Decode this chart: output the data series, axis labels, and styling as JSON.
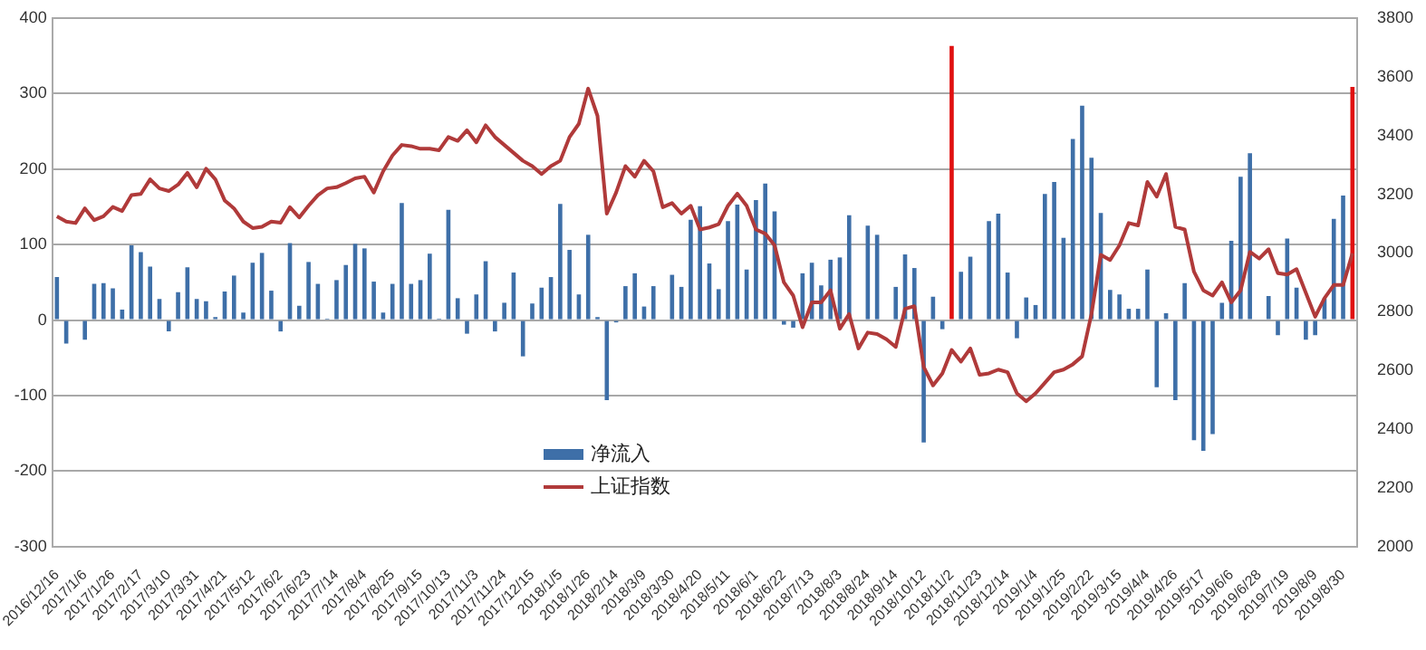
{
  "chart_data": {
    "type": "bar",
    "categories": [
      "2016/12/16",
      null,
      null,
      "2017/1/6",
      null,
      null,
      "2017/1/26",
      null,
      null,
      "2017/2/17",
      null,
      null,
      "2017/3/10",
      null,
      null,
      "2017/3/31",
      null,
      null,
      "2017/4/21",
      null,
      null,
      "2017/5/12",
      null,
      null,
      "2017/6/2",
      null,
      null,
      "2017/6/23",
      null,
      null,
      "2017/7/14",
      null,
      null,
      "2017/8/4",
      null,
      null,
      "2017/8/25",
      null,
      null,
      "2017/9/15",
      null,
      null,
      "2017/10/13",
      null,
      null,
      "2017/11/3",
      null,
      null,
      "2017/11/24",
      null,
      null,
      "2017/12/15",
      null,
      null,
      "2018/1/5",
      null,
      null,
      "2018/1/26",
      null,
      null,
      "2018/2/14",
      null,
      null,
      "2018/3/9",
      null,
      null,
      "2018/3/30",
      null,
      null,
      "2018/4/20",
      null,
      null,
      "2018/5/11",
      null,
      null,
      "2018/6/1",
      null,
      null,
      "2018/6/22",
      null,
      null,
      "2018/7/13",
      null,
      null,
      "2018/8/3",
      null,
      null,
      "2018/8/24",
      null,
      null,
      "2018/9/14",
      null,
      null,
      "2018/10/12",
      null,
      null,
      "2018/11/2",
      null,
      null,
      "2018/11/23",
      null,
      null,
      "2018/12/14",
      null,
      null,
      "2019/1/4",
      null,
      null,
      "2019/1/25",
      null,
      null,
      "2019/2/22",
      null,
      null,
      "2019/3/15",
      null,
      null,
      "2019/4/4",
      null,
      null,
      "2019/4/26",
      null,
      null,
      "2019/5/17",
      null,
      null,
      "2019/6/6",
      null,
      null,
      "2019/6/28",
      null,
      null,
      "2019/7/19",
      null,
      null,
      "2019/8/9",
      null,
      null,
      "2019/8/30",
      null
    ],
    "series": [
      {
        "name": "净流入",
        "color": "#3e6fa8",
        "colors": [
          "#3e6fa8",
          "#3e6fa8",
          "#3e6fa8",
          "#3e6fa8",
          "#3e6fa8",
          "#3e6fa8",
          "#3e6fa8",
          "#3e6fa8",
          "#3e6fa8",
          "#3e6fa8",
          "#3e6fa8",
          "#3e6fa8",
          "#3e6fa8",
          "#3e6fa8",
          "#3e6fa8",
          "#3e6fa8",
          "#3e6fa8",
          "#3e6fa8",
          "#3e6fa8",
          "#3e6fa8",
          "#3e6fa8",
          "#3e6fa8",
          "#3e6fa8",
          "#3e6fa8",
          "#3e6fa8",
          "#3e6fa8",
          "#3e6fa8",
          "#3e6fa8",
          "#3e6fa8",
          "#3e6fa8",
          "#3e6fa8",
          "#3e6fa8",
          "#3e6fa8",
          "#3e6fa8",
          "#3e6fa8",
          "#3e6fa8",
          "#3e6fa8",
          "#3e6fa8",
          "#3e6fa8",
          "#3e6fa8",
          "#3e6fa8",
          "#3e6fa8",
          "#3e6fa8",
          "#3e6fa8",
          "#3e6fa8",
          "#3e6fa8",
          "#3e6fa8",
          "#3e6fa8",
          "#3e6fa8",
          "#3e6fa8",
          "#3e6fa8",
          "#3e6fa8",
          "#3e6fa8",
          "#3e6fa8",
          "#3e6fa8",
          "#3e6fa8",
          "#3e6fa8",
          "#3e6fa8",
          "#3e6fa8",
          "#3e6fa8",
          "#3e6fa8",
          "#3e6fa8",
          "#3e6fa8",
          "#3e6fa8",
          "#3e6fa8",
          "#3e6fa8",
          "#3e6fa8",
          "#3e6fa8",
          "#3e6fa8",
          "#3e6fa8",
          "#3e6fa8",
          "#3e6fa8",
          "#3e6fa8",
          "#3e6fa8",
          "#3e6fa8",
          "#3e6fa8",
          "#3e6fa8",
          "#3e6fa8",
          "#3e6fa8",
          "#3e6fa8",
          "#3e6fa8",
          "#3e6fa8",
          "#3e6fa8",
          "#3e6fa8",
          "#3e6fa8",
          "#3e6fa8",
          "#3e6fa8",
          "#3e6fa8",
          "#3e6fa8",
          "#3e6fa8",
          "#3e6fa8",
          "#3e6fa8",
          "#3e6fa8",
          "#3e6fa8",
          "#3e6fa8",
          "#3e6fa8",
          "#e01010",
          "#3e6fa8",
          "#3e6fa8",
          "#3e6fa8",
          "#3e6fa8",
          "#3e6fa8",
          "#3e6fa8",
          "#3e6fa8",
          "#3e6fa8",
          "#3e6fa8",
          "#3e6fa8",
          "#3e6fa8",
          "#3e6fa8",
          "#3e6fa8",
          "#3e6fa8",
          "#3e6fa8",
          "#3e6fa8",
          "#3e6fa8",
          "#3e6fa8",
          "#3e6fa8",
          "#3e6fa8",
          "#3e6fa8",
          "#3e6fa8",
          "#3e6fa8",
          "#3e6fa8",
          "#3e6fa8",
          "#3e6fa8",
          "#3e6fa8",
          "#3e6fa8",
          "#3e6fa8",
          "#3e6fa8",
          "#3e6fa8",
          "#3e6fa8",
          "#3e6fa8",
          "#3e6fa8",
          "#3e6fa8",
          "#3e6fa8",
          "#3e6fa8",
          "#3e6fa8",
          "#3e6fa8",
          "#3e6fa8",
          "#3e6fa8",
          "#3e6fa8",
          "#e01010"
        ],
        "values": [
          57,
          -31,
          null,
          -26,
          48,
          49,
          42,
          14,
          99,
          90,
          71,
          28,
          -15,
          37,
          70,
          28,
          25,
          4,
          38,
          59,
          10,
          76,
          89,
          39,
          -15,
          102,
          19,
          77,
          48,
          2,
          53,
          73,
          101,
          95,
          51,
          10,
          48,
          155,
          48,
          53,
          88,
          2,
          146,
          29,
          -18,
          34,
          78,
          -15,
          23,
          63,
          -48,
          22,
          43,
          57,
          154,
          93,
          34,
          113,
          4,
          -106,
          -3,
          45,
          62,
          18,
          45,
          0,
          60,
          44,
          133,
          151,
          75,
          41,
          131,
          153,
          67,
          159,
          181,
          144,
          -6,
          -10,
          62,
          76,
          46,
          80,
          83,
          139,
          0,
          125,
          113,
          0,
          44,
          87,
          69,
          -162,
          31,
          -12,
          363,
          64,
          84,
          null,
          131,
          141,
          63,
          -24,
          30,
          20,
          167,
          183,
          109,
          240,
          284,
          215,
          142,
          40,
          34,
          15,
          15,
          67,
          -89,
          9,
          -106,
          49,
          -159,
          -173,
          -151,
          23,
          105,
          190,
          221,
          0,
          32,
          -20,
          108,
          43,
          -26,
          -20,
          29,
          134,
          165,
          309
        ]
      },
      {
        "name": "上证指数",
        "type": "line",
        "axis": "y2",
        "color": "#b03a3a",
        "values": [
          3125,
          3107,
          3102,
          3152,
          3112,
          3125,
          3157,
          3143,
          3197,
          3201,
          3251,
          3220,
          3211,
          3233,
          3273,
          3224,
          3287,
          3251,
          3179,
          3152,
          3107,
          3085,
          3089,
          3107,
          3103,
          3156,
          3121,
          3161,
          3197,
          3220,
          3224,
          3238,
          3254,
          3260,
          3206,
          3278,
          3332,
          3368,
          3364,
          3355,
          3355,
          3350,
          3395,
          3382,
          3418,
          3377,
          3435,
          3395,
          3368,
          3341,
          3314,
          3296,
          3269,
          3296,
          3314,
          3395,
          3440,
          3560,
          3467,
          3134,
          3206,
          3296,
          3260,
          3314,
          3278,
          3156,
          3170,
          3134,
          3161,
          3080,
          3087,
          3098,
          3161,
          3202,
          3161,
          3080,
          3066,
          3026,
          2900,
          2855,
          2747,
          2832,
          2832,
          2873,
          2742,
          2792,
          2675,
          2729,
          2724,
          2706,
          2680,
          2810,
          2819,
          2612,
          2549,
          2590,
          2670,
          2630,
          2675,
          2585,
          2590,
          2603,
          2594,
          2522,
          2495,
          2522,
          2558,
          2594,
          2603,
          2621,
          2648,
          2792,
          2994,
          2976,
          3026,
          3102,
          3094,
          3242,
          3192,
          3269,
          3089,
          3080,
          2936,
          2873,
          2855,
          2900,
          2832,
          2873,
          3004,
          2981,
          3013,
          2931,
          2927,
          2945,
          2864,
          2783,
          2846,
          2891,
          2891,
          2999
        ]
      }
    ],
    "ylim": [
      -300,
      400
    ],
    "yticks": [
      -300,
      -200,
      -100,
      0,
      100,
      200,
      300,
      400
    ],
    "y2lim": [
      2000,
      3800
    ],
    "y2ticks": [
      2000,
      2200,
      2400,
      2600,
      2800,
      3000,
      3200,
      3400,
      3600,
      3800
    ],
    "grid": "y",
    "legend": "bottom",
    "marker": "none",
    "line_style": "solid"
  }
}
